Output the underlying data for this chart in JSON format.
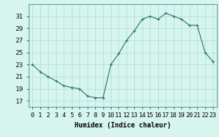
{
  "x": [
    0,
    1,
    2,
    3,
    4,
    5,
    6,
    7,
    8,
    9,
    10,
    11,
    12,
    13,
    14,
    15,
    16,
    17,
    18,
    19,
    20,
    21,
    22,
    23
  ],
  "y": [
    23,
    21.8,
    21.0,
    20.3,
    19.5,
    19.2,
    19.0,
    17.8,
    17.5,
    17.5,
    23.0,
    24.8,
    27.0,
    28.6,
    30.5,
    31.0,
    30.5,
    31.5,
    31.0,
    30.5,
    29.5,
    29.5,
    25.0,
    23.5
  ],
  "xlabel": "Humidex (Indice chaleur)",
  "ylim": [
    16,
    33
  ],
  "xlim": [
    -0.5,
    23.5
  ],
  "yticks": [
    17,
    19,
    21,
    23,
    25,
    27,
    29,
    31
  ],
  "xtick_labels": [
    "0",
    "1",
    "2",
    "3",
    "4",
    "5",
    "6",
    "7",
    "8",
    "9",
    "10",
    "11",
    "12",
    "13",
    "14",
    "15",
    "16",
    "17",
    "18",
    "19",
    "20",
    "21",
    "22",
    "23"
  ],
  "line_color": "#2d7a6e",
  "marker": "+",
  "bg_color": "#d6f5ef",
  "grid_color": "#b0d8d4",
  "xlabel_fontsize": 7,
  "tick_fontsize": 6.5
}
